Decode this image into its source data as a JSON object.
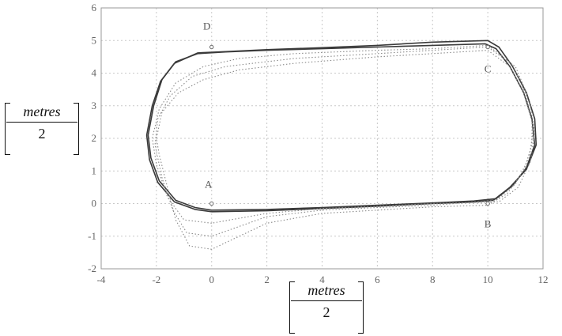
{
  "chart_data": {
    "type": "line",
    "xlim": [
      -4,
      12
    ],
    "ylim": [
      -2,
      6
    ],
    "x_ticks": [
      "-4",
      "-2",
      "0",
      "2",
      "4",
      "6",
      "8",
      "10",
      "12"
    ],
    "y_ticks": [
      "-2",
      "-1",
      "0",
      "1",
      "2",
      "3",
      "4",
      "5",
      "6"
    ],
    "xlabel": {
      "numerator": "metres",
      "denominator": "2"
    },
    "ylabel": {
      "numerator": "metres",
      "denominator": "2"
    },
    "grid": true,
    "colors": {
      "solid": "#3a3a3a",
      "dotted": "#8a8a8a",
      "grid": "#c8c8c8",
      "axis": "#999999"
    },
    "waypoints": [
      {
        "label": "A",
        "x": 0.0,
        "y": 0.0
      },
      {
        "label": "B",
        "x": 10.0,
        "y": 0.0
      },
      {
        "label": "C",
        "x": 10.0,
        "y": 4.8
      },
      {
        "label": "D",
        "x": 0.0,
        "y": 4.8
      }
    ],
    "series": [
      {
        "style": "solid",
        "points": [
          [
            0,
            -0.2
          ],
          [
            2,
            -0.18
          ],
          [
            4,
            -0.12
          ],
          [
            6,
            -0.05
          ],
          [
            8,
            0.02
          ],
          [
            9.5,
            0.08
          ],
          [
            10.3,
            0.15
          ],
          [
            10.9,
            0.55
          ],
          [
            11.4,
            1.1
          ],
          [
            11.7,
            1.8
          ],
          [
            11.6,
            2.6
          ],
          [
            11.3,
            3.4
          ],
          [
            10.8,
            4.2
          ],
          [
            10.3,
            4.75
          ],
          [
            9.9,
            4.9
          ],
          [
            8,
            4.85
          ],
          [
            6,
            4.8
          ],
          [
            4,
            4.75
          ],
          [
            2,
            4.7
          ],
          [
            0.5,
            4.65
          ],
          [
            -0.5,
            4.6
          ],
          [
            -1.3,
            4.35
          ],
          [
            -1.8,
            3.8
          ],
          [
            -2.1,
            3.0
          ],
          [
            -2.3,
            2.1
          ],
          [
            -2.2,
            1.4
          ],
          [
            -1.9,
            0.7
          ],
          [
            -1.3,
            0.1
          ],
          [
            -0.6,
            -0.12
          ],
          [
            0,
            -0.2
          ]
        ]
      },
      {
        "style": "solid",
        "points": [
          [
            0,
            -0.25
          ],
          [
            2,
            -0.22
          ],
          [
            4,
            -0.15
          ],
          [
            6,
            -0.08
          ],
          [
            8,
            0.0
          ],
          [
            9.5,
            0.05
          ],
          [
            10.2,
            0.1
          ],
          [
            10.8,
            0.5
          ],
          [
            11.4,
            1.05
          ],
          [
            11.75,
            1.8
          ],
          [
            11.7,
            2.6
          ],
          [
            11.4,
            3.4
          ],
          [
            10.9,
            4.2
          ],
          [
            10.4,
            4.8
          ],
          [
            10.0,
            5.0
          ],
          [
            8,
            4.95
          ],
          [
            6,
            4.85
          ],
          [
            4,
            4.78
          ],
          [
            2,
            4.72
          ],
          [
            0.5,
            4.66
          ],
          [
            -0.5,
            4.62
          ],
          [
            -1.35,
            4.3
          ],
          [
            -1.85,
            3.75
          ],
          [
            -2.15,
            3.0
          ],
          [
            -2.35,
            2.1
          ],
          [
            -2.25,
            1.35
          ],
          [
            -1.95,
            0.65
          ],
          [
            -1.35,
            0.05
          ],
          [
            -0.6,
            -0.18
          ],
          [
            0,
            -0.25
          ]
        ]
      },
      {
        "style": "dotted",
        "points": [
          [
            0,
            -1.4
          ],
          [
            -0.8,
            -1.3
          ],
          [
            -1.3,
            -0.5
          ],
          [
            -1.6,
            0.5
          ],
          [
            -1.9,
            1.5
          ],
          [
            -2.0,
            2.0
          ],
          [
            -1.8,
            2.8
          ],
          [
            -1.2,
            3.4
          ],
          [
            -0.3,
            3.8
          ],
          [
            1.0,
            4.1
          ],
          [
            3,
            4.3
          ],
          [
            6,
            4.5
          ],
          [
            8,
            4.6
          ],
          [
            10,
            4.7
          ],
          [
            10.8,
            4.2
          ],
          [
            11.3,
            3.4
          ],
          [
            11.6,
            2.5
          ],
          [
            11.6,
            1.8
          ],
          [
            11.3,
            1.0
          ],
          [
            10.7,
            0.3
          ],
          [
            10,
            -0.05
          ],
          [
            8,
            -0.1
          ],
          [
            6,
            -0.2
          ],
          [
            4,
            -0.3
          ],
          [
            2,
            -0.6
          ],
          [
            0,
            -1.4
          ]
        ]
      },
      {
        "style": "dotted",
        "points": [
          [
            0,
            -1.0
          ],
          [
            -0.9,
            -0.9
          ],
          [
            -1.4,
            -0.2
          ],
          [
            -1.8,
            0.8
          ],
          [
            -2.05,
            1.8
          ],
          [
            -1.95,
            2.6
          ],
          [
            -1.5,
            3.3
          ],
          [
            -0.7,
            3.9
          ],
          [
            0.5,
            4.2
          ],
          [
            3,
            4.45
          ],
          [
            6,
            4.6
          ],
          [
            8,
            4.7
          ],
          [
            10,
            4.8
          ],
          [
            10.9,
            4.25
          ],
          [
            11.4,
            3.3
          ],
          [
            11.65,
            2.3
          ],
          [
            11.5,
            1.4
          ],
          [
            11.0,
            0.6
          ],
          [
            10.3,
            0.1
          ],
          [
            8,
            -0.05
          ],
          [
            6,
            -0.12
          ],
          [
            4,
            -0.2
          ],
          [
            2,
            -0.4
          ],
          [
            0,
            -1.0
          ]
        ]
      },
      {
        "style": "dotted",
        "points": [
          [
            0,
            -0.6
          ],
          [
            -1.0,
            -0.5
          ],
          [
            -1.6,
            0.2
          ],
          [
            -2.0,
            1.2
          ],
          [
            -2.15,
            2.0
          ],
          [
            -1.9,
            2.9
          ],
          [
            -1.3,
            3.7
          ],
          [
            -0.3,
            4.2
          ],
          [
            1,
            4.45
          ],
          [
            3,
            4.6
          ],
          [
            6,
            4.7
          ],
          [
            8,
            4.75
          ],
          [
            10,
            4.85
          ],
          [
            11.0,
            4.2
          ],
          [
            11.5,
            3.2
          ],
          [
            11.7,
            2.2
          ],
          [
            11.55,
            1.3
          ],
          [
            11.1,
            0.5
          ],
          [
            10.4,
            0.05
          ],
          [
            8,
            0.0
          ],
          [
            6,
            -0.08
          ],
          [
            4,
            -0.15
          ],
          [
            2,
            -0.3
          ],
          [
            0,
            -0.6
          ]
        ]
      }
    ]
  }
}
